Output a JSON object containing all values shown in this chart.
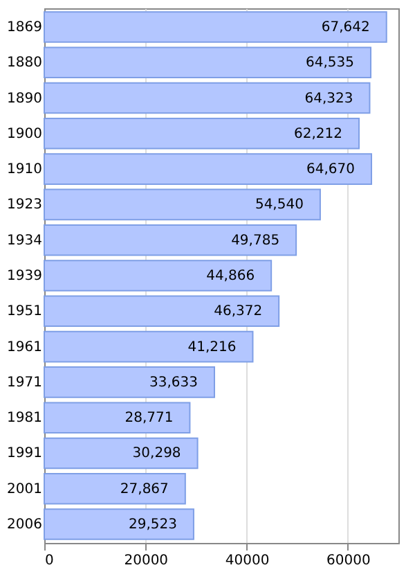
{
  "chart_data": {
    "type": "bar",
    "orientation": "horizontal",
    "categories": [
      "1869",
      "1880",
      "1890",
      "1900",
      "1910",
      "1923",
      "1934",
      "1939",
      "1951",
      "1961",
      "1971",
      "1981",
      "1991",
      "2001",
      "2006"
    ],
    "values": [
      67642,
      64535,
      64323,
      62212,
      64670,
      54540,
      49785,
      44866,
      46372,
      41216,
      33633,
      28771,
      30298,
      27867,
      29523
    ],
    "value_labels": [
      "67,642",
      "64,535",
      "64,323",
      "62,212",
      "64,670",
      "54,540",
      "49,785",
      "44,866",
      "46,372",
      "41,216",
      "33,633",
      "28,771",
      "30,298",
      "27,867",
      "29,523"
    ],
    "color": "#b3c6ff",
    "xlim": [
      0,
      70000
    ],
    "xticks": [
      0,
      20000,
      40000,
      60000
    ],
    "grid": "x"
  }
}
